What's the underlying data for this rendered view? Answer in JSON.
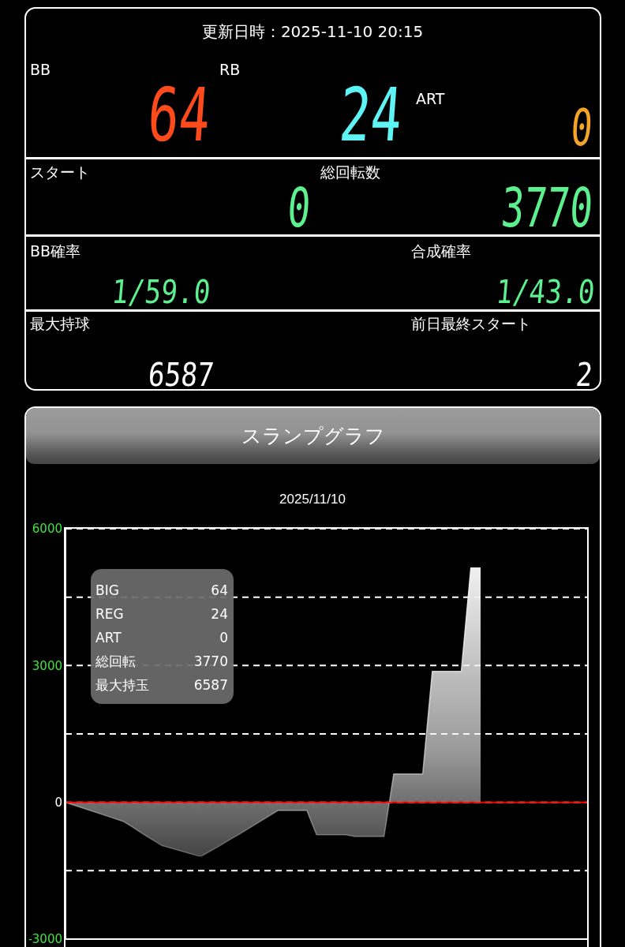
{
  "chart_data": [
    {
      "type": "other",
      "title": "更新日時：2025-11-10 20:15",
      "annotations": [
        "BB",
        "64",
        "RB",
        "24",
        "ART",
        "0",
        "スタート",
        "0",
        "総回転数",
        "3770",
        "BB確率",
        "1/59.0",
        "合成確率",
        "1/43.0",
        "最大持球",
        "6587",
        "前日最終スタート",
        "2"
      ]
    },
    {
      "type": "area",
      "title": "スランプグラフ",
      "subtitle": "2025/11/10",
      "categories": [
        null,
        null,
        null,
        null,
        null,
        null,
        null,
        null,
        null,
        null,
        null,
        null,
        null,
        null,
        null,
        null,
        null,
        null,
        null,
        null,
        null,
        null,
        null,
        null,
        null,
        null,
        null,
        null,
        null,
        null,
        null,
        null,
        null,
        null,
        null,
        null,
        null,
        null,
        null,
        null,
        null,
        null,
        null,
        null
      ],
      "values": [
        0,
        -70,
        -140,
        -210,
        -280,
        -350,
        -420,
        -550,
        -690,
        -820,
        -950,
        -1010,
        -1070,
        -1130,
        -1190,
        -1070,
        -950,
        -820,
        -700,
        -570,
        -440,
        -310,
        -180,
        -180,
        -180,
        -180,
        -710,
        -710,
        -710,
        -710,
        -750,
        -750,
        -750,
        -750,
        620,
        620,
        620,
        620,
        2870,
        2870,
        2870,
        2870,
        5150,
        5150
      ],
      "color": "#f0f0f0",
      "ylim": [
        -3000,
        6000
      ],
      "yticks": [
        -3000,
        {
          "value": -1500,
          "label": null
        },
        0,
        {
          "value": 1500,
          "label": null
        },
        3000,
        {
          "value": 4500,
          "label": null
        },
        6000
      ],
      "grid": "y",
      "tick_labels": "y",
      "ref_lines": [
        {
          "axis": "y",
          "value": 0,
          "color": "#ff0000"
        }
      ],
      "annotations": [
        "BIG",
        "64",
        "REG",
        "24",
        "ART",
        "0",
        "総回転",
        "3770",
        "最大持玉",
        "6587"
      ]
    }
  ]
}
